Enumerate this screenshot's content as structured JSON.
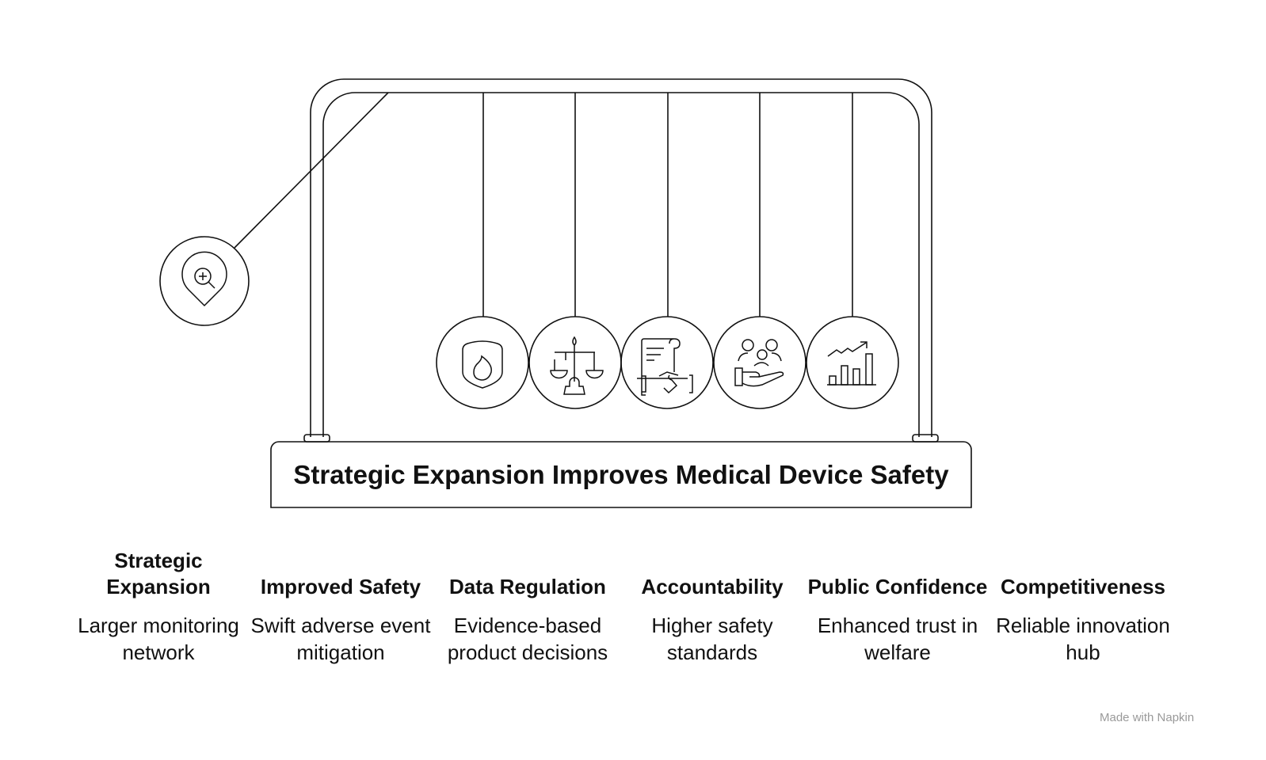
{
  "title": "Strategic Expansion Improves Medical Device Safety",
  "stroke_color": "#111111",
  "lead_ball": {
    "icon": "location-search-icon"
  },
  "balls": [
    {
      "icon": "shield-flame-icon"
    },
    {
      "icon": "scales-icon"
    },
    {
      "icon": "contract-handshake-icon"
    },
    {
      "icon": "people-hand-icon"
    },
    {
      "icon": "growth-chart-icon"
    }
  ],
  "columns": [
    {
      "heading": "Strategic Expansion",
      "description": "Larger monitoring network"
    },
    {
      "heading": "Improved Safety",
      "description": "Swift adverse event mitigation"
    },
    {
      "heading": "Data Regulation",
      "description": "Evidence-based product decisions"
    },
    {
      "heading": "Accountability",
      "description": "Higher safety standards"
    },
    {
      "heading": "Public Confidence",
      "description": "Enhanced trust in welfare"
    },
    {
      "heading": "Competitiveness",
      "description": "Reliable innovation hub"
    }
  ],
  "watermark": "Made with Napkin"
}
